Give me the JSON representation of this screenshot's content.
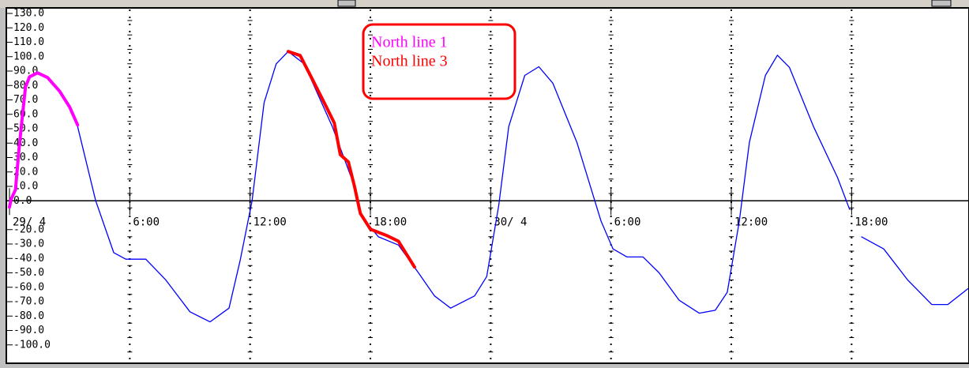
{
  "chart_data": {
    "type": "line",
    "xlim": [
      0,
      47.8
    ],
    "ylim": [
      -110,
      130
    ],
    "xticks": [
      {
        "value": 0,
        "label": "29/ 4"
      },
      {
        "value": 6,
        "label": "6:00"
      },
      {
        "value": 12,
        "label": "12:00"
      },
      {
        "value": 18,
        "label": "18:00"
      },
      {
        "value": 24,
        "label": "30/ 4"
      },
      {
        "value": 30,
        "label": "6:00"
      },
      {
        "value": 36,
        "label": "12:00"
      },
      {
        "value": 42,
        "label": "18:00"
      }
    ],
    "yticks": [
      {
        "value": 130,
        "label": "130.0"
      },
      {
        "value": 120,
        "label": "120.0"
      },
      {
        "value": 110,
        "label": "110.0"
      },
      {
        "value": 100,
        "label": "100.0"
      },
      {
        "value": 90,
        "label": "90.0"
      },
      {
        "value": 80,
        "label": "80.0"
      },
      {
        "value": 70,
        "label": "70.0"
      },
      {
        "value": 60,
        "label": "60.0"
      },
      {
        "value": 50,
        "label": "50.0"
      },
      {
        "value": 40,
        "label": "40.0"
      },
      {
        "value": 30,
        "label": "30.0"
      },
      {
        "value": 20,
        "label": "20.0"
      },
      {
        "value": 10,
        "label": "10.0"
      },
      {
        "value": 0,
        "label": "0.0"
      },
      {
        "value": -20,
        "label": "-20.0"
      },
      {
        "value": -30,
        "label": "-30.0"
      },
      {
        "value": -40,
        "label": "-40.0"
      },
      {
        "value": -50,
        "label": "-50.0"
      },
      {
        "value": -60,
        "label": "-60.0"
      },
      {
        "value": -70,
        "label": "-70.0"
      },
      {
        "value": -80,
        "label": "-80.0"
      },
      {
        "value": -90,
        "label": "-90.0"
      },
      {
        "value": -100,
        "label": "-100.0"
      }
    ],
    "grid": true,
    "legend": "top",
    "series": [
      {
        "color": "#0000ff",
        "x": [
          3.4,
          4.3,
          5.2,
          5.8,
          6.8,
          7.8,
          9.0,
          10.0,
          10.95,
          11.5,
          12.1,
          12.7,
          13.3,
          13.9,
          14.7,
          16.1,
          17.05,
          17.6,
          18.4,
          19.4,
          20.4,
          21.2,
          22.0,
          23.2,
          23.8,
          24.4,
          24.9,
          25.7,
          26.4,
          27.1,
          28.3,
          29.5,
          30.1,
          30.8,
          31.6,
          32.4,
          33.4,
          34.4,
          35.2,
          35.8,
          36.4,
          36.9,
          37.7,
          38.3,
          38.9,
          40.1,
          41.3,
          41.9,
          42.2,
          42.5,
          43.6,
          44.8,
          46.0,
          46.8,
          47.8
        ],
        "values": [
          51.5,
          0,
          -36,
          -40.5,
          -40.5,
          -55,
          -77,
          -84,
          -74.5,
          -41.6,
          0,
          68,
          95,
          103.6,
          95,
          51.5,
          16,
          -11.5,
          -25,
          -30.7,
          -50,
          -66,
          -74.5,
          -66,
          -52.6,
          -3.3,
          51.5,
          87,
          93,
          81.6,
          40.5,
          -14,
          -33.4,
          -39,
          -39,
          -50,
          -69,
          -78,
          -76,
          -63.5,
          -14,
          40.5,
          87,
          101,
          92.6,
          51.5,
          16,
          -6,
          null,
          -25,
          -33.4,
          -55,
          -72,
          -72,
          -61
        ]
      },
      {
        "name": "North line 1",
        "color": "#ff00ff",
        "x": [
          0,
          0.08,
          0.3,
          0.47,
          0.63,
          0.8,
          1.0,
          1.4,
          1.9,
          2.5,
          3.0,
          3.4
        ],
        "values": [
          -4.4,
          1,
          7.7,
          35,
          57,
          79,
          86,
          88.8,
          85.5,
          76,
          65,
          52.6
        ]
      },
      {
        "name": "North line 3",
        "color": "#ff0000",
        "x": [
          13.9,
          14.5,
          15.1,
          15.7,
          16.2,
          16.5,
          16.9,
          17.2,
          17.5,
          18.0,
          18.8,
          19.4,
          20.2
        ],
        "values": [
          103.6,
          100.8,
          84.4,
          68,
          54,
          32,
          27,
          10.4,
          -8.8,
          -19.7,
          -24,
          -28,
          -46
        ]
      }
    ]
  }
}
